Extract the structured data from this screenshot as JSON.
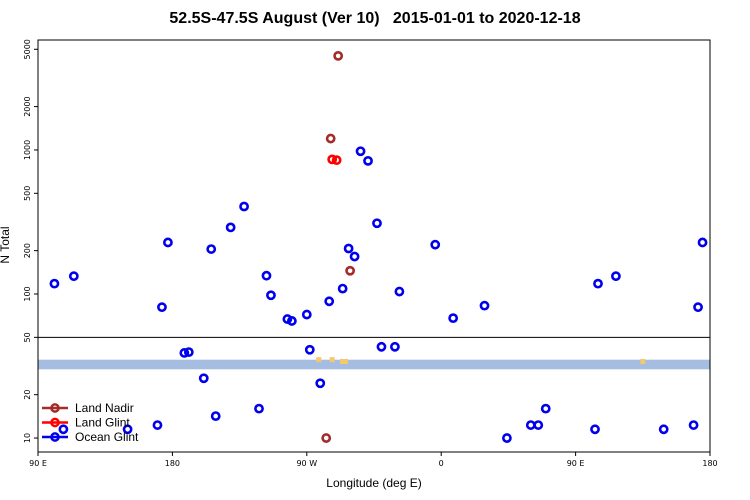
{
  "chart_data": {
    "type": "scatter",
    "title": "52.5S-47.5S August (Ver 10)   2015-01-01 to 2020-12-18",
    "xlabel": "Longitude (deg E)",
    "ylabel": "N Total",
    "x_axis": {
      "range_deg_east_unwrapped": [
        90,
        450
      ],
      "ticks": [
        {
          "value": 90,
          "label": "90 E"
        },
        {
          "value": 180,
          "label": "180"
        },
        {
          "value": 270,
          "label": "90 W"
        },
        {
          "value": 360,
          "label": "0"
        },
        {
          "value": 450,
          "label": "90 E"
        },
        {
          "value": 540,
          "label": "180"
        }
      ],
      "range": [
        90,
        540
      ]
    },
    "y_axis": {
      "scale": "log",
      "range": [
        8,
        5800
      ],
      "ticks": [
        10,
        20,
        50,
        100,
        200,
        500,
        1000,
        2000,
        5000
      ],
      "tick_labels": [
        "10",
        "20",
        "50",
        "100",
        "200",
        "500",
        "1000",
        "2000",
        "5000"
      ]
    },
    "reference_line_y": 50,
    "coverage_band": {
      "y_low": 30,
      "y_high": 35,
      "color": "#a4bde0"
    },
    "land_markers": [
      {
        "x": 278,
        "y": 35
      },
      {
        "x": 287,
        "y": 35
      },
      {
        "x": 296,
        "y": 34
      },
      {
        "x": 294,
        "y": 34
      },
      {
        "x": 495,
        "y": 34
      }
    ],
    "legend_position": "bottom-left",
    "series": [
      {
        "name": "Land Nadir",
        "color": "#a52a2a",
        "points": [
          {
            "x": 291,
            "y": 4500
          },
          {
            "x": 286,
            "y": 1200
          },
          {
            "x": 299,
            "y": 145
          },
          {
            "x": 283,
            "y": 10
          }
        ]
      },
      {
        "name": "Land Glint",
        "color": "#ff0000",
        "points": [
          {
            "x": 287,
            "y": 860
          },
          {
            "x": 290,
            "y": 850
          }
        ]
      },
      {
        "name": "Ocean Glint",
        "color": "#0000ee",
        "points": [
          {
            "x": 101,
            "y": 118
          },
          {
            "x": 114,
            "y": 133
          },
          {
            "x": 107,
            "y": 11.5
          },
          {
            "x": 150,
            "y": 11.5
          },
          {
            "x": 173,
            "y": 81
          },
          {
            "x": 177,
            "y": 228
          },
          {
            "x": 170,
            "y": 12.3
          },
          {
            "x": 188,
            "y": 39
          },
          {
            "x": 191,
            "y": 39.5
          },
          {
            "x": 201,
            "y": 26
          },
          {
            "x": 206,
            "y": 205
          },
          {
            "x": 209,
            "y": 14.2
          },
          {
            "x": 219,
            "y": 290
          },
          {
            "x": 228,
            "y": 405
          },
          {
            "x": 238,
            "y": 16
          },
          {
            "x": 243,
            "y": 134
          },
          {
            "x": 246,
            "y": 98
          },
          {
            "x": 257,
            "y": 67
          },
          {
            "x": 260,
            "y": 65
          },
          {
            "x": 270,
            "y": 72
          },
          {
            "x": 272,
            "y": 41
          },
          {
            "x": 279,
            "y": 24
          },
          {
            "x": 285,
            "y": 89
          },
          {
            "x": 294,
            "y": 109
          },
          {
            "x": 298,
            "y": 207
          },
          {
            "x": 302,
            "y": 182
          },
          {
            "x": 306,
            "y": 980
          },
          {
            "x": 311,
            "y": 840
          },
          {
            "x": 317,
            "y": 310
          },
          {
            "x": 320,
            "y": 43
          },
          {
            "x": 329,
            "y": 43
          },
          {
            "x": 332,
            "y": 104
          },
          {
            "x": 356,
            "y": 220
          },
          {
            "x": 368,
            "y": 68
          },
          {
            "x": 389,
            "y": 83
          },
          {
            "x": 404,
            "y": 10
          },
          {
            "x": 420,
            "y": 12.3
          },
          {
            "x": 425,
            "y": 12.3
          },
          {
            "x": 430,
            "y": 16
          },
          {
            "x": 465,
            "y": 118
          },
          {
            "x": 477,
            "y": 133
          },
          {
            "x": 463,
            "y": 11.5
          },
          {
            "x": 509,
            "y": 11.5
          },
          {
            "x": 529,
            "y": 12.3
          },
          {
            "x": 532,
            "y": 81
          },
          {
            "x": 535,
            "y": 228
          }
        ]
      }
    ]
  }
}
